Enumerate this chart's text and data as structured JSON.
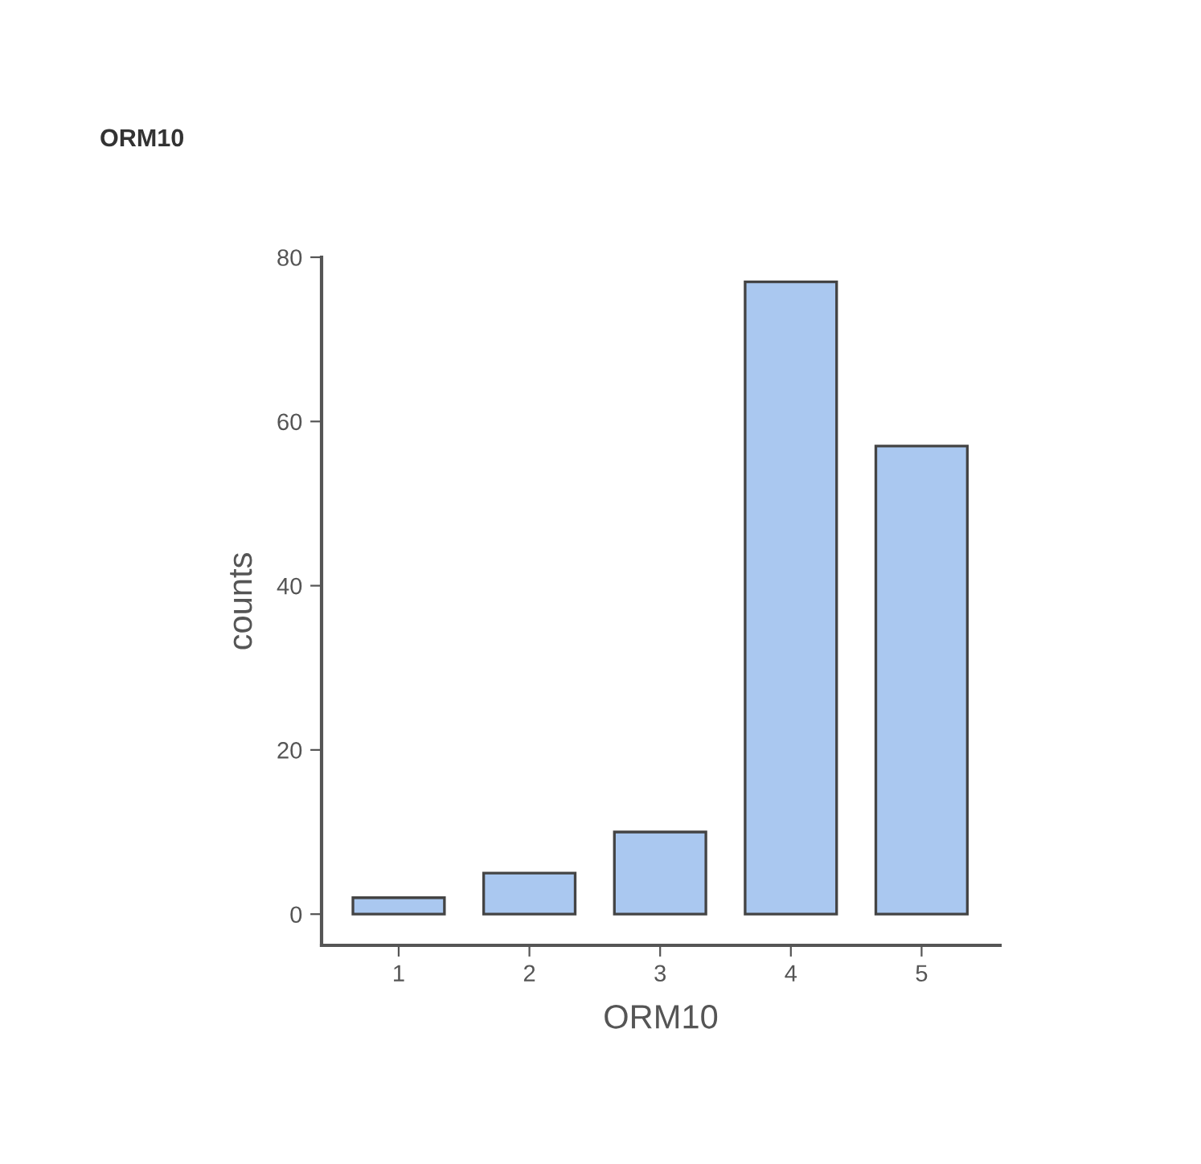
{
  "chart_data": {
    "type": "bar",
    "title": "ORM10",
    "xlabel": "ORM10",
    "ylabel": "counts",
    "categories": [
      "1",
      "2",
      "3",
      "4",
      "5"
    ],
    "values": [
      2,
      5,
      10,
      77,
      57
    ],
    "color": "#aac8f0",
    "ylim": [
      -3.8,
      80
    ],
    "yticks": [
      0,
      20,
      40,
      60,
      80
    ],
    "grid": false
  }
}
